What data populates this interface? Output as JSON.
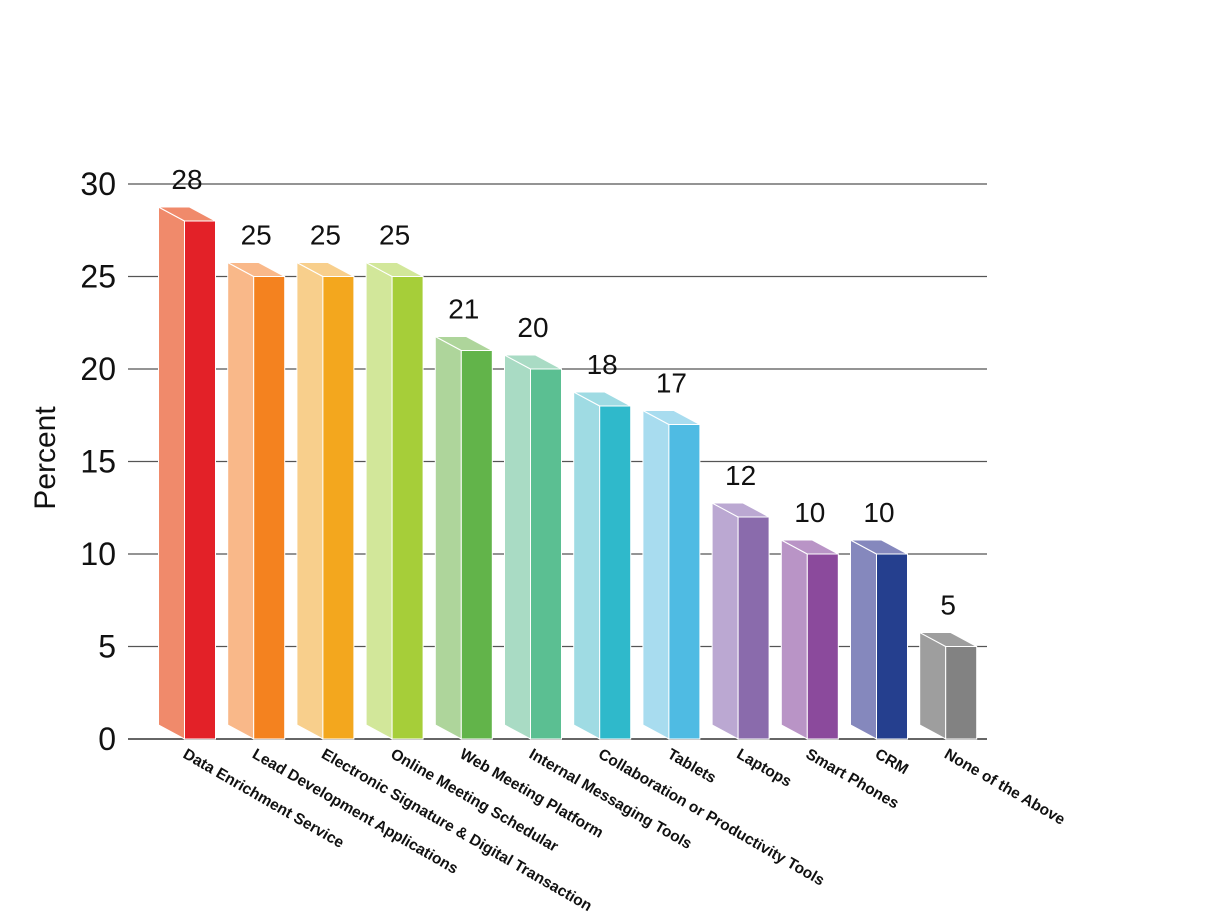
{
  "chart_data": {
    "type": "bar",
    "title": "",
    "xlabel": "",
    "ylabel": "Percent",
    "ylim": [
      0,
      30
    ],
    "yticks": [
      0,
      5,
      10,
      15,
      20,
      25,
      30
    ],
    "grid": true,
    "style": "3d-bars",
    "categories": [
      "Data Enrichment Service",
      "Lead Development Applications",
      "Electronic Signature & Digital Transaction",
      "Online Meeting Schedular",
      "Web Meeting Platform",
      "Internal Messaging Tools",
      "Collaboration or Productivity Tools",
      "Tablets",
      "Laptops",
      "Smart Phones",
      "CRM",
      "None of the Above"
    ],
    "values": [
      28,
      25,
      25,
      25,
      21,
      20,
      18,
      17,
      12,
      10,
      10,
      5
    ],
    "colors": [
      {
        "front": "#e32128",
        "side": "#f08a6b"
      },
      {
        "front": "#f4821f",
        "side": "#f9b889"
      },
      {
        "front": "#f3a71e",
        "side": "#f8cf8c"
      },
      {
        "front": "#a6ce39",
        "side": "#d2e79a"
      },
      {
        "front": "#62b44a",
        "side": "#aed59b"
      },
      {
        "front": "#5bbf92",
        "side": "#a9dbc4"
      },
      {
        "front": "#2fb9cb",
        "side": "#9fdbe3"
      },
      {
        "front": "#4fbbe3",
        "side": "#a8dcef"
      },
      {
        "front": "#8a6bac",
        "side": "#bba8d2"
      },
      {
        "front": "#8b4a9c",
        "side": "#b994c6"
      },
      {
        "front": "#253f8e",
        "side": "#8588bd"
      },
      {
        "front": "#828282",
        "side": "#9e9e9e"
      }
    ]
  }
}
